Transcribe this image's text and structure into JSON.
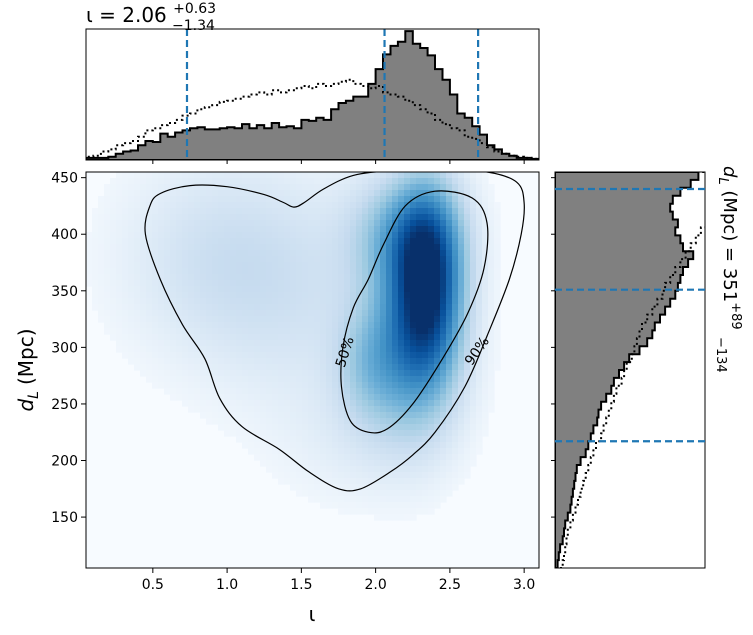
{
  "chart_data": [
    {
      "panel": "top-marginal",
      "type": "histogram",
      "title_main": "ι = 2.06",
      "title_sup": "+0.63",
      "title_sub": "−1.34",
      "x_range": [
        0.05,
        3.1
      ],
      "bins_x": [
        0.05,
        0.1,
        0.15,
        0.2,
        0.25,
        0.3,
        0.35,
        0.4,
        0.45,
        0.5,
        0.55,
        0.6,
        0.65,
        0.7,
        0.75,
        0.8,
        0.85,
        0.9,
        0.95,
        1.0,
        1.05,
        1.1,
        1.15,
        1.2,
        1.25,
        1.3,
        1.35,
        1.4,
        1.45,
        1.5,
        1.55,
        1.6,
        1.65,
        1.7,
        1.75,
        1.8,
        1.85,
        1.9,
        1.95,
        2.0,
        2.05,
        2.1,
        2.15,
        2.2,
        2.25,
        2.3,
        2.35,
        2.4,
        2.45,
        2.5,
        2.55,
        2.6,
        2.65,
        2.7,
        2.75,
        2.8,
        2.85,
        2.9,
        2.95,
        3.0,
        3.05,
        3.1
      ],
      "series": [
        {
          "style": "filled-gray",
          "values": [
            2,
            2,
            2,
            3,
            6,
            8,
            9,
            14,
            18,
            17,
            25,
            22,
            26,
            28,
            30,
            31,
            29,
            29,
            30,
            31,
            30,
            34,
            30,
            33,
            30,
            35,
            31,
            32,
            30,
            38,
            37,
            40,
            38,
            48,
            54,
            56,
            60,
            60,
            72,
            86,
            100,
            108,
            112,
            122,
            110,
            106,
            99,
            86,
            76,
            62,
            44,
            40,
            32,
            24,
            14,
            10,
            6,
            4,
            2,
            2,
            1
          ]
        },
        {
          "style": "dotted",
          "values": [
            3,
            4,
            8,
            10,
            14,
            16,
            18,
            22,
            28,
            30,
            33,
            35,
            38,
            42,
            44,
            48,
            50,
            52,
            55,
            56,
            58,
            60,
            62,
            64,
            62,
            66,
            64,
            66,
            68,
            70,
            68,
            72,
            70,
            72,
            74,
            76,
            72,
            70,
            68,
            70,
            64,
            62,
            60,
            56,
            52,
            48,
            44,
            38,
            34,
            30,
            28,
            22,
            20,
            16,
            12,
            8,
            6,
            4,
            3,
            2,
            1
          ]
        }
      ],
      "credible_lines": [
        0.73,
        2.06,
        2.69
      ]
    },
    {
      "panel": "joint",
      "type": "heatmap",
      "xlabel": "ι",
      "ylabel_main": "d",
      "ylabel_sub": "L",
      "ylabel_unit": "(Mpc)",
      "x_ticks": [
        "0.5",
        "1.0",
        "1.5",
        "2.0",
        "2.5",
        "3.0"
      ],
      "y_ticks": [
        "150",
        "200",
        "250",
        "300",
        "350",
        "400",
        "450"
      ],
      "xlim": [
        0.05,
        3.1
      ],
      "ylim": [
        105,
        455
      ],
      "contour_labels": [
        "50%",
        "90%"
      ],
      "density_blobs": [
        {
          "x": 2.35,
          "y": 360,
          "sx": 0.16,
          "sy": 55,
          "w": 1.0
        },
        {
          "x": 2.25,
          "y": 300,
          "sx": 0.22,
          "sy": 55,
          "w": 0.55
        },
        {
          "x": 2.2,
          "y": 400,
          "sx": 0.25,
          "sy": 35,
          "w": 0.45
        },
        {
          "x": 1.95,
          "y": 285,
          "sx": 0.16,
          "sy": 35,
          "w": 0.25
        },
        {
          "x": 0.95,
          "y": 380,
          "sx": 0.45,
          "sy": 60,
          "w": 0.18
        },
        {
          "x": 1.5,
          "y": 340,
          "sx": 0.45,
          "sy": 70,
          "w": 0.12
        },
        {
          "x": 1.9,
          "y": 220,
          "sx": 0.35,
          "sy": 40,
          "w": 0.08
        }
      ],
      "contour_90": [
        [
          0.55,
          436
        ],
        [
          0.75,
          443
        ],
        [
          1.0,
          442
        ],
        [
          1.25,
          435
        ],
        [
          1.38,
          428
        ],
        [
          1.45,
          424
        ],
        [
          1.52,
          428
        ],
        [
          1.65,
          440
        ],
        [
          1.85,
          452
        ],
        [
          2.1,
          456
        ],
        [
          2.4,
          457
        ],
        [
          2.75,
          455
        ],
        [
          2.95,
          446
        ],
        [
          3.0,
          428
        ],
        [
          2.98,
          400
        ],
        [
          2.9,
          360
        ],
        [
          2.75,
          310
        ],
        [
          2.6,
          265
        ],
        [
          2.4,
          225
        ],
        [
          2.25,
          205
        ],
        [
          2.1,
          190
        ],
        [
          1.9,
          175
        ],
        [
          1.75,
          175
        ],
        [
          1.55,
          190
        ],
        [
          1.35,
          210
        ],
        [
          1.1,
          230
        ],
        [
          0.95,
          255
        ],
        [
          0.85,
          290
        ],
        [
          0.7,
          320
        ],
        [
          0.55,
          360
        ],
        [
          0.45,
          400
        ],
        [
          0.48,
          425
        ]
      ],
      "contour_50": [
        [
          2.05,
          390
        ],
        [
          2.2,
          425
        ],
        [
          2.4,
          438
        ],
        [
          2.65,
          432
        ],
        [
          2.75,
          410
        ],
        [
          2.73,
          370
        ],
        [
          2.62,
          330
        ],
        [
          2.45,
          290
        ],
        [
          2.25,
          250
        ],
        [
          2.08,
          228
        ],
        [
          1.95,
          225
        ],
        [
          1.83,
          235
        ],
        [
          1.77,
          265
        ],
        [
          1.78,
          300
        ],
        [
          1.85,
          335
        ],
        [
          1.95,
          360
        ]
      ]
    },
    {
      "panel": "right-marginal",
      "type": "histogram",
      "orientation": "horizontal",
      "title_main": "d",
      "title_sub_L": "L",
      "title_rest": " (Mpc) = 351",
      "title_sup": "+89",
      "title_sub": "−134",
      "y_range": [
        105,
        455
      ],
      "bins_y": [
        105,
        112,
        119,
        126,
        133,
        140,
        147,
        154,
        161,
        168,
        175,
        182,
        189,
        196,
        203,
        210,
        217,
        224,
        231,
        238,
        245,
        252,
        259,
        266,
        273,
        280,
        287,
        294,
        301,
        308,
        315,
        322,
        329,
        336,
        343,
        350,
        357,
        364,
        371,
        378,
        385,
        392,
        399,
        406,
        413,
        420,
        427,
        434,
        441,
        448,
        455
      ],
      "series": [
        {
          "style": "filled-gray",
          "values": [
            2,
            3,
            4,
            6,
            7,
            8,
            10,
            12,
            13,
            14,
            15,
            16,
            17,
            20,
            24,
            26,
            28,
            30,
            33,
            34,
            36,
            40,
            44,
            46,
            50,
            54,
            58,
            66,
            72,
            76,
            78,
            82,
            86,
            90,
            94,
            96,
            98,
            100,
            104,
            108,
            100,
            98,
            94,
            96,
            92,
            90,
            92,
            98,
            106,
            112
          ]
        },
        {
          "style": "dotted",
          "values": [
            6,
            7,
            8,
            9,
            10,
            12,
            14,
            16,
            18,
            20,
            22,
            24,
            26,
            28,
            30,
            32,
            36,
            38,
            40,
            42,
            44,
            46,
            48,
            52,
            54,
            56,
            60,
            62,
            64,
            66,
            68,
            72,
            76,
            80,
            84,
            86,
            90,
            94,
            98,
            102,
            106,
            110,
            114,
            118,
            120,
            124,
            126,
            128,
            132,
            136
          ]
        }
      ],
      "credible_lines": [
        217,
        351,
        440
      ]
    }
  ]
}
